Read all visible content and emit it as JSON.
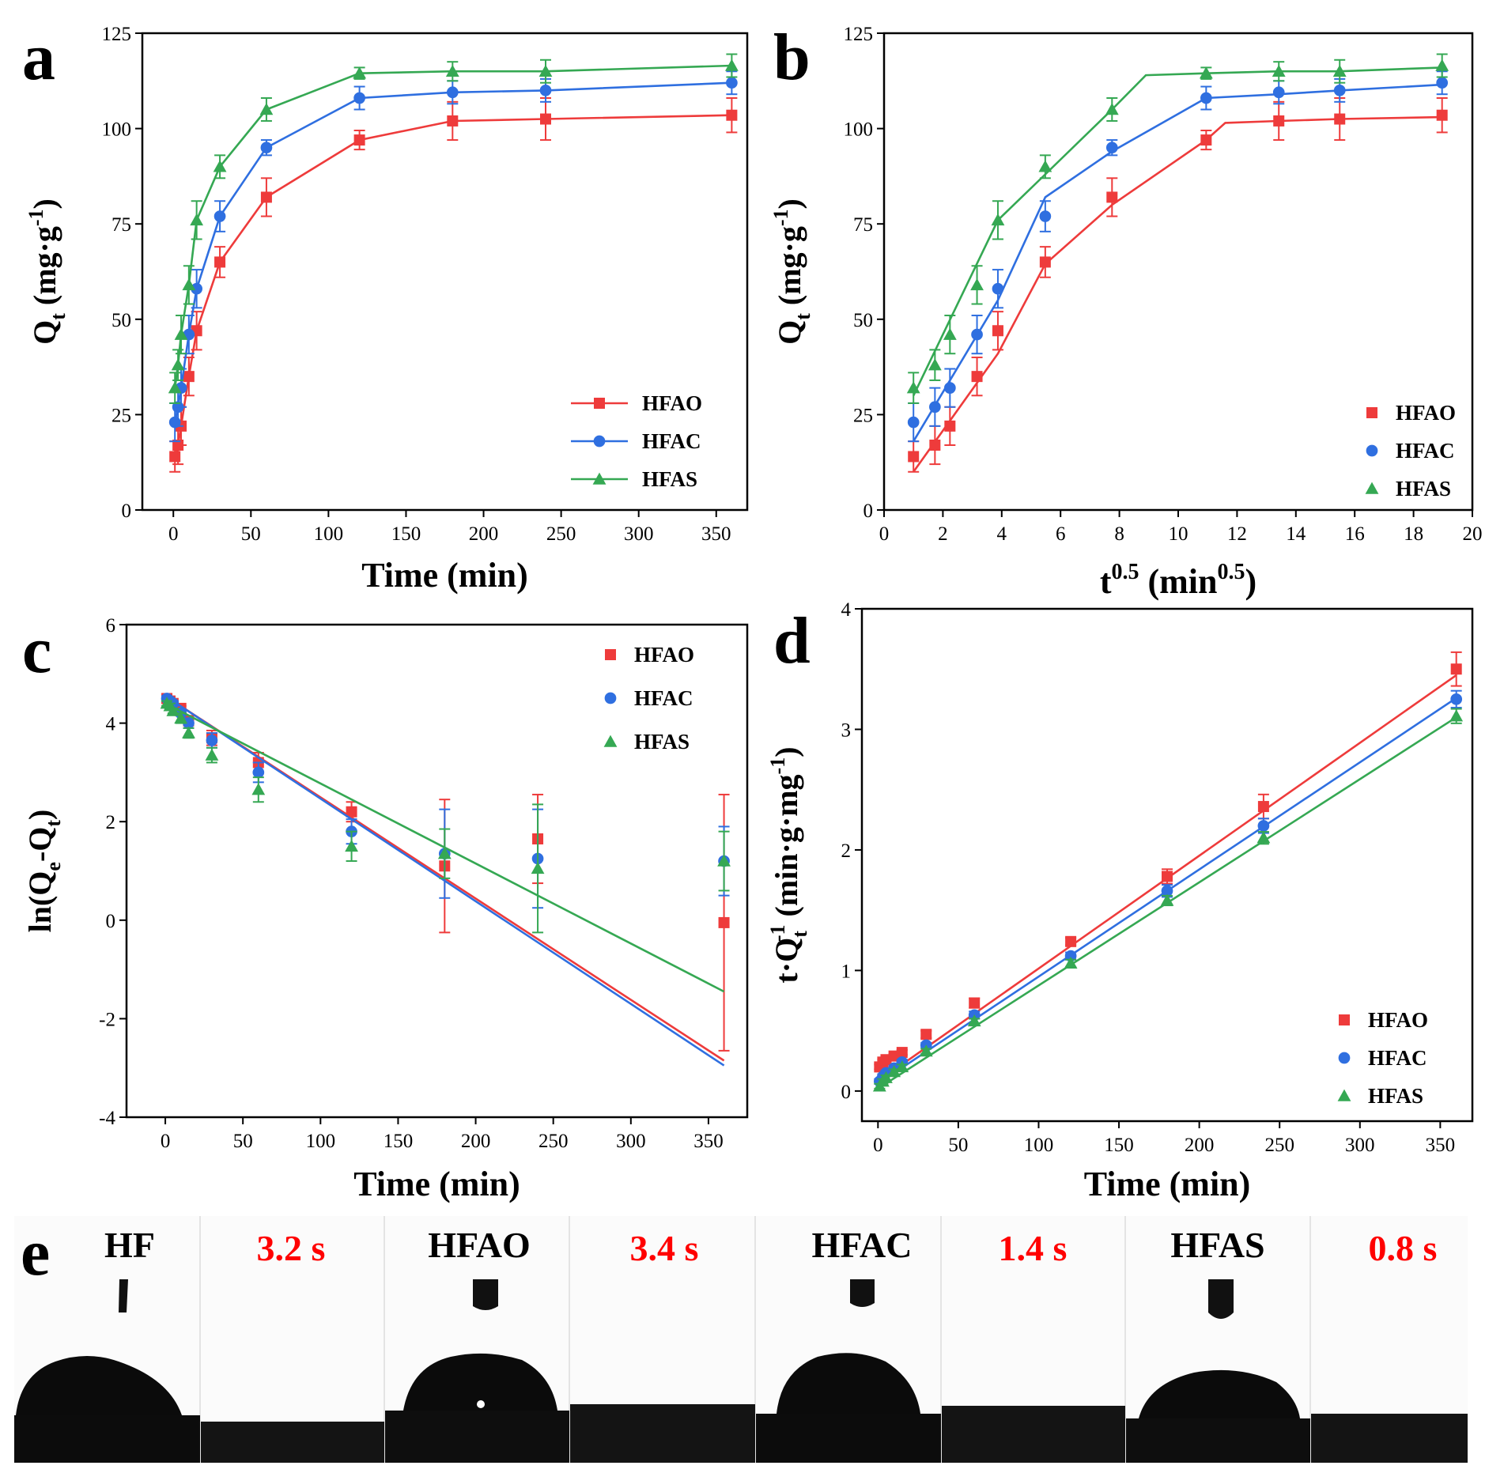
{
  "colors": {
    "HFAO": "#ee3b3b",
    "HFAC": "#2f6fe0",
    "HFAS": "#35a853",
    "time_red": "#ff0000"
  },
  "chart_data": [
    {
      "id": "a",
      "panel_label": "a",
      "type": "line",
      "xlabel": "Time (min)",
      "ylabel_parts": [
        "Q",
        "t",
        " (mg·g",
        "-1",
        ")"
      ],
      "xlim": [
        -20,
        370
      ],
      "ylim": [
        0,
        125
      ],
      "xticks": [
        0,
        50,
        100,
        150,
        200,
        250,
        300,
        350
      ],
      "yticks": [
        0,
        25,
        50,
        75,
        100,
        125
      ],
      "legend": {
        "position": "bottom-right",
        "style": "line-marker"
      },
      "series": [
        {
          "name": "HFAO",
          "marker": "square",
          "x": [
            1,
            3,
            5,
            10,
            15,
            30,
            60,
            120,
            180,
            240,
            360
          ],
          "y": [
            14,
            17,
            22,
            35,
            47,
            65,
            82,
            97,
            102,
            102.5,
            103.5
          ],
          "err": [
            4,
            5,
            5,
            5,
            5,
            4,
            5,
            2.5,
            5,
            5.5,
            4.5
          ]
        },
        {
          "name": "HFAC",
          "marker": "circle",
          "x": [
            1,
            3,
            5,
            10,
            15,
            30,
            60,
            120,
            180,
            240,
            360
          ],
          "y": [
            23,
            27,
            32,
            46,
            58,
            77,
            95,
            108,
            109.5,
            110,
            112
          ],
          "err": [
            5,
            5,
            5,
            5,
            5,
            4,
            2,
            3,
            3,
            3,
            3
          ]
        },
        {
          "name": "HFAS",
          "marker": "triangle",
          "x": [
            1,
            3,
            5,
            10,
            15,
            30,
            60,
            120,
            180,
            240,
            360
          ],
          "y": [
            32,
            38,
            46,
            59,
            76,
            90,
            105,
            114.5,
            115,
            115,
            116.5
          ],
          "err": [
            4,
            4,
            5,
            5,
            5,
            3,
            3,
            1.5,
            2.5,
            3,
            3
          ]
        }
      ]
    },
    {
      "id": "b",
      "panel_label": "b",
      "type": "scatter+fit",
      "xlabel_parts": [
        "t",
        "0.5",
        " (min",
        "0.5",
        ")"
      ],
      "ylabel_parts": [
        "Q",
        "t",
        " (mg·g",
        "-1",
        ")"
      ],
      "xlim": [
        0,
        20
      ],
      "ylim": [
        0,
        125
      ],
      "xticks": [
        0,
        2,
        4,
        6,
        8,
        10,
        12,
        14,
        16,
        18,
        20
      ],
      "yticks": [
        0,
        25,
        50,
        75,
        100,
        125
      ],
      "legend": {
        "position": "bottom-right",
        "style": "marker"
      },
      "series": [
        {
          "name": "HFAO",
          "marker": "square",
          "x": [
            1,
            1.73,
            2.24,
            3.16,
            3.87,
            5.48,
            7.75,
            10.95,
            13.42,
            15.49,
            18.97
          ],
          "y": [
            14,
            17,
            22,
            35,
            47,
            65,
            82,
            97,
            102,
            102.5,
            103.5
          ],
          "err": [
            4,
            5,
            5,
            5,
            5,
            4,
            5,
            2.5,
            5,
            5.5,
            4.5
          ],
          "fit_x": [
            1,
            3.87,
            5.48,
            7.75,
            10.95,
            11.6,
            13.42,
            15.49,
            18.97
          ],
          "fit_y": [
            10,
            41,
            64.5,
            80,
            97,
            101.5,
            102,
            102.5,
            103
          ]
        },
        {
          "name": "HFAC",
          "marker": "circle",
          "x": [
            1,
            1.73,
            2.24,
            3.16,
            3.87,
            5.48,
            7.75,
            10.95,
            13.42,
            15.49,
            18.97
          ],
          "y": [
            23,
            27,
            32,
            46,
            58,
            77,
            95,
            108,
            109.5,
            110,
            112
          ],
          "err": [
            5,
            5,
            5,
            5,
            5,
            4,
            2,
            3,
            3,
            3,
            3
          ],
          "fit_x": [
            1,
            3.87,
            5.48,
            7.75,
            10.95,
            13.42,
            15.49,
            18.97
          ],
          "fit_y": [
            18,
            55,
            82,
            94,
            108,
            109,
            110,
            111.5
          ]
        },
        {
          "name": "HFAS",
          "marker": "triangle",
          "x": [
            1,
            1.73,
            2.24,
            3.16,
            3.87,
            5.48,
            7.75,
            10.95,
            13.42,
            15.49,
            18.97
          ],
          "y": [
            32,
            38,
            46,
            59,
            76,
            90,
            105,
            114.5,
            115,
            115,
            116.5
          ],
          "err": [
            4,
            4,
            5,
            5,
            5,
            3,
            3,
            1.5,
            2.5,
            3,
            3
          ],
          "fit_x": [
            1,
            3.87,
            5.48,
            7.75,
            8.9,
            10.95,
            13.42,
            15.49,
            18.97
          ],
          "fit_y": [
            30,
            76,
            88,
            105,
            114,
            114.5,
            115,
            115,
            116
          ]
        }
      ]
    },
    {
      "id": "c",
      "panel_label": "c",
      "type": "scatter+fit",
      "xlabel": "Time (min)",
      "ylabel_parts": [
        "ln(Q",
        "e",
        "-Q",
        "t",
        ")"
      ],
      "xlim": [
        -25,
        375
      ],
      "ylim": [
        -4,
        6
      ],
      "xticks": [
        0,
        50,
        100,
        150,
        200,
        250,
        300,
        350
      ],
      "yticks": [
        -4,
        -2,
        0,
        2,
        4,
        6
      ],
      "legend": {
        "position": "top-right",
        "style": "marker"
      },
      "series": [
        {
          "name": "HFAO",
          "marker": "square",
          "x": [
            1,
            3,
            5,
            10,
            15,
            30,
            60,
            120,
            180,
            240,
            360
          ],
          "y": [
            4.5,
            4.45,
            4.4,
            4.3,
            4.05,
            3.7,
            3.2,
            2.2,
            1.1,
            1.65,
            -0.05
          ],
          "err": [
            0.05,
            0.05,
            0.05,
            0.05,
            0.1,
            0.15,
            0.2,
            0.2,
            1.35,
            0.9,
            2.6
          ],
          "fit_x": [
            0,
            360
          ],
          "fit_y": [
            4.55,
            -2.85
          ]
        },
        {
          "name": "HFAC",
          "marker": "circle",
          "x": [
            1,
            3,
            5,
            10,
            15,
            30,
            60,
            120,
            180,
            240,
            360
          ],
          "y": [
            4.5,
            4.45,
            4.4,
            4.2,
            4.0,
            3.65,
            3.0,
            1.8,
            1.35,
            1.25,
            1.2
          ],
          "err": [
            0.05,
            0.05,
            0.05,
            0.05,
            0.1,
            0.15,
            0.2,
            0.25,
            0.9,
            1.0,
            0.7
          ],
          "fit_x": [
            0,
            360
          ],
          "fit_y": [
            4.55,
            -2.95
          ]
        },
        {
          "name": "HFAS",
          "marker": "triangle",
          "x": [
            1,
            3,
            5,
            10,
            15,
            30,
            60,
            120,
            180,
            240,
            360
          ],
          "y": [
            4.4,
            4.35,
            4.25,
            4.1,
            3.8,
            3.35,
            2.65,
            1.5,
            1.35,
            1.05,
            1.2
          ],
          "err": [
            0.05,
            0.05,
            0.05,
            0.1,
            0.1,
            0.15,
            0.25,
            0.3,
            0.5,
            1.3,
            0.6
          ],
          "fit_x": [
            0,
            360
          ],
          "fit_y": [
            4.4,
            -1.45
          ]
        }
      ]
    },
    {
      "id": "d",
      "panel_label": "d",
      "type": "scatter+fit",
      "xlabel": "Time (min)",
      "ylabel_parts": [
        "t·Q",
        "t",
        "-1",
        " (min·g·mg",
        "-1",
        ")"
      ],
      "xlim": [
        -10,
        370
      ],
      "ylim": [
        -0.25,
        4
      ],
      "xticks": [
        0,
        50,
        100,
        150,
        200,
        250,
        300,
        350
      ],
      "yticks": [
        0,
        1,
        2,
        3,
        4
      ],
      "legend": {
        "position": "bottom-right",
        "style": "marker"
      },
      "series": [
        {
          "name": "HFAO",
          "marker": "square",
          "x": [
            1,
            3,
            5,
            10,
            15,
            30,
            60,
            120,
            180,
            240,
            360
          ],
          "y": [
            0.2,
            0.24,
            0.26,
            0.29,
            0.32,
            0.47,
            0.73,
            1.24,
            1.78,
            2.36,
            3.5
          ],
          "err": [
            0.02,
            0.02,
            0.02,
            0.02,
            0.02,
            0.03,
            0.04,
            0.03,
            0.06,
            0.1,
            0.14
          ],
          "fit_x": [
            0,
            360
          ],
          "fit_y": [
            0.08,
            3.45
          ]
        },
        {
          "name": "HFAC",
          "marker": "circle",
          "x": [
            1,
            3,
            5,
            10,
            15,
            30,
            60,
            120,
            180,
            240,
            360
          ],
          "y": [
            0.08,
            0.12,
            0.15,
            0.19,
            0.24,
            0.38,
            0.63,
            1.12,
            1.66,
            2.2,
            3.25
          ],
          "err": [
            0.02,
            0.02,
            0.02,
            0.02,
            0.02,
            0.02,
            0.03,
            0.03,
            0.05,
            0.06,
            0.07
          ],
          "fit_x": [
            0,
            360
          ],
          "fit_y": [
            0.06,
            3.26
          ]
        },
        {
          "name": "HFAS",
          "marker": "triangle",
          "x": [
            1,
            3,
            5,
            10,
            15,
            30,
            60,
            120,
            180,
            240,
            360
          ],
          "y": [
            0.04,
            0.08,
            0.11,
            0.16,
            0.2,
            0.33,
            0.58,
            1.06,
            1.58,
            2.1,
            3.11
          ],
          "err": [
            0.02,
            0.02,
            0.02,
            0.02,
            0.02,
            0.02,
            0.02,
            0.03,
            0.04,
            0.05,
            0.06
          ],
          "fit_x": [
            0,
            360
          ],
          "fit_y": [
            0.02,
            3.1
          ]
        }
      ]
    }
  ],
  "strip": {
    "panel_label": "e",
    "labels": [
      {
        "text": "HF",
        "kind": "sample"
      },
      {
        "text": "3.2 s",
        "kind": "time"
      },
      {
        "text": "HFAO",
        "kind": "sample"
      },
      {
        "text": "3.4 s",
        "kind": "time"
      },
      {
        "text": "HFAC",
        "kind": "sample"
      },
      {
        "text": "1.4 s",
        "kind": "time"
      },
      {
        "text": "HFAS",
        "kind": "sample"
      },
      {
        "text": "0.8 s",
        "kind": "time"
      }
    ]
  }
}
